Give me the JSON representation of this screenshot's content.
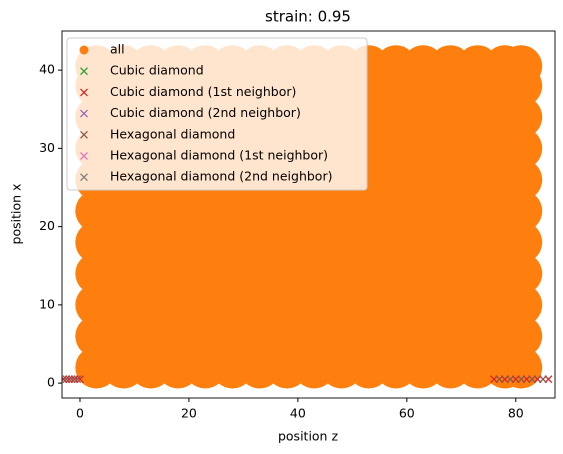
{
  "chart_data": {
    "type": "scatter",
    "title": "strain: 0.95",
    "x_label": "position z",
    "y_label": "position x",
    "xlim": [
      -3.3,
      87.2
    ],
    "ylim": [
      -1.9,
      45
    ],
    "xticks": [
      0,
      20,
      40,
      60,
      80
    ],
    "yticks": [
      0,
      10,
      20,
      30,
      40
    ],
    "legend": "upper left",
    "series": [
      {
        "name": "all",
        "color": "#ff7f0e",
        "marker": "o",
        "x": [
          3,
          8,
          13,
          18,
          23,
          28,
          33,
          38,
          43,
          48,
          53,
          58,
          63,
          68,
          73,
          78,
          81,
          3,
          8,
          13,
          18,
          23,
          28,
          33,
          38,
          43,
          48,
          53,
          58,
          63,
          68,
          73,
          78,
          81,
          3,
          8,
          13,
          18,
          23,
          28,
          33,
          38,
          43,
          48,
          53,
          58,
          63,
          68,
          73,
          78,
          81,
          3,
          8,
          13,
          18,
          23,
          28,
          33,
          38,
          43,
          48,
          53,
          58,
          63,
          68,
          73,
          78,
          81,
          3,
          8,
          13,
          18,
          23,
          28,
          33,
          38,
          43,
          48,
          53,
          58,
          63,
          68,
          73,
          78,
          81,
          3,
          8,
          13,
          18,
          23,
          28,
          33,
          38,
          43,
          48,
          53,
          58,
          63,
          68,
          73,
          78,
          81,
          3,
          8,
          13,
          18,
          23,
          28,
          33,
          38,
          43,
          48,
          53,
          58,
          63,
          68,
          73,
          78,
          81,
          3,
          8,
          13,
          18,
          23,
          28,
          33,
          38,
          43,
          48,
          53,
          58,
          63,
          68,
          73,
          78,
          81,
          3,
          8,
          13,
          18,
          23,
          28,
          33,
          38,
          43,
          48,
          53,
          58,
          63,
          68,
          73,
          78,
          81,
          3,
          8,
          13,
          18,
          23,
          28,
          33,
          38,
          43,
          48,
          53,
          58,
          63,
          68,
          73,
          78,
          81,
          3,
          8,
          13,
          18,
          23,
          28,
          33,
          38,
          43,
          48,
          53,
          58,
          63,
          68,
          73,
          78,
          81
        ],
        "y": [
          2,
          2,
          2,
          2,
          2,
          2,
          2,
          2,
          2,
          2,
          2,
          2,
          2,
          2,
          2,
          2,
          2,
          6,
          6,
          6,
          6,
          6,
          6,
          6,
          6,
          6,
          6,
          6,
          6,
          6,
          6,
          6,
          6,
          6,
          10,
          10,
          10,
          10,
          10,
          10,
          10,
          10,
          10,
          10,
          10,
          10,
          10,
          10,
          10,
          10,
          10,
          14,
          14,
          14,
          14,
          14,
          14,
          14,
          14,
          14,
          14,
          14,
          14,
          14,
          14,
          14,
          14,
          14,
          18,
          18,
          18,
          18,
          18,
          18,
          18,
          18,
          18,
          18,
          18,
          18,
          18,
          18,
          18,
          18,
          18,
          22,
          22,
          22,
          22,
          22,
          22,
          22,
          22,
          22,
          22,
          22,
          22,
          22,
          22,
          22,
          22,
          22,
          26,
          26,
          26,
          26,
          26,
          26,
          26,
          26,
          26,
          26,
          26,
          26,
          26,
          26,
          26,
          26,
          26,
          30,
          30,
          30,
          30,
          30,
          30,
          30,
          30,
          30,
          30,
          30,
          30,
          30,
          30,
          30,
          30,
          30,
          34,
          34,
          34,
          34,
          34,
          34,
          34,
          34,
          34,
          34,
          34,
          34,
          34,
          34,
          34,
          34,
          34,
          38,
          38,
          38,
          38,
          38,
          38,
          38,
          38,
          38,
          38,
          38,
          38,
          38,
          38,
          38,
          38,
          38,
          40.5,
          40.5,
          40.5,
          40.5,
          40.5,
          40.5,
          40.5,
          40.5,
          40.5,
          40.5,
          40.5,
          40.5,
          40.5,
          40.5,
          40.5,
          40.5,
          40.5
        ]
      },
      {
        "name": "Cubic diamond",
        "color": "#2ca02c",
        "marker": "x",
        "x": [],
        "y": []
      },
      {
        "name": "Cubic diamond (1st neighbor)",
        "color": "#d62728",
        "marker": "x",
        "x": [
          -3,
          -2,
          -1,
          0,
          76,
          78,
          80,
          82,
          84,
          86
        ],
        "y": [
          0.5,
          0.5,
          0.5,
          0.5,
          0.5,
          0.5,
          0.5,
          0.5,
          0.5,
          0.5
        ]
      },
      {
        "name": "Cubic diamond (2nd neighbor)",
        "color": "#9467bd",
        "marker": "x",
        "x": [],
        "y": []
      },
      {
        "name": "Hexagonal diamond",
        "color": "#8c564b",
        "marker": "x",
        "x": [
          -2.5,
          -1.5,
          -0.5,
          77,
          79,
          81,
          83,
          85
        ],
        "y": [
          0.5,
          0.5,
          0.5,
          0.5,
          0.5,
          0.5,
          0.5,
          0.5
        ]
      },
      {
        "name": "Hexagonal diamond (1st neighbor)",
        "color": "#e377c2",
        "marker": "x",
        "x": [],
        "y": []
      },
      {
        "name": "Hexagonal diamond (2nd neighbor)",
        "color": "#7f7f7f",
        "marker": "x",
        "x": [],
        "y": []
      }
    ]
  }
}
